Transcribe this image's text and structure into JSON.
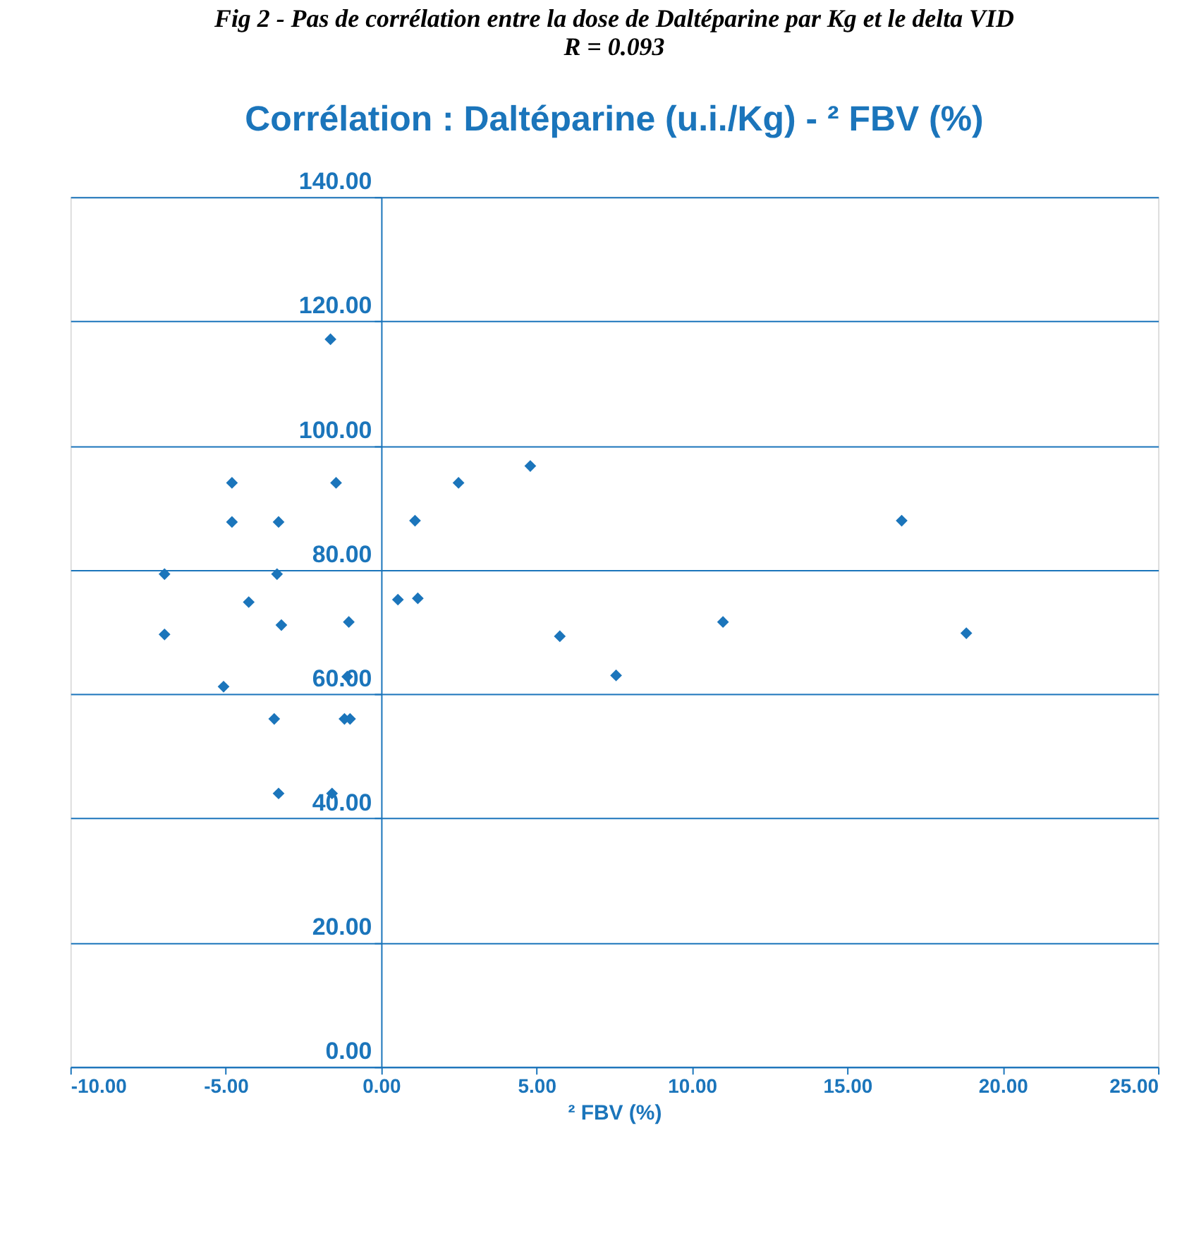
{
  "chart_data": {
    "type": "scatter",
    "title": "Corrélation : Daltéparine (u.i./Kg) - ² FBV (%)",
    "annotations": [
      "Fig 2 - Pas de corrélation entre la dose de Daltéparine par Kg et le delta VID",
      "R = 0.093"
    ],
    "xlabel": "² FBV (%)",
    "x": [
      -6.97,
      -6.97,
      -4.8,
      -4.8,
      -4.26,
      -5.07,
      -3.3,
      -3.35,
      -3.21,
      -3.44,
      -3.3,
      -1.63,
      -1.45,
      -1.04,
      -1.09,
      -1.18,
      -1.0,
      -1.58,
      0.54,
      1.09,
      1.18,
      2.49,
      4.8,
      5.75,
      7.56,
      11.0,
      16.75,
      18.83
    ],
    "values": [
      79.3,
      69.6,
      94.0,
      87.7,
      74.8,
      61.2,
      87.7,
      79.3,
      71.1,
      56.0,
      44.0,
      117.1,
      94.0,
      71.6,
      62.8,
      56.0,
      56.0,
      44.0,
      75.2,
      87.9,
      75.4,
      94.0,
      96.7,
      69.3,
      63.0,
      71.6,
      87.9,
      69.8
    ],
    "color": "#1b75bb",
    "marker": "diamond",
    "grid": "y",
    "xlim": [
      -10,
      25
    ],
    "xticks": [
      {
        "value": -10,
        "label": "-10.00"
      },
      {
        "value": -5,
        "label": "-5.00"
      },
      {
        "value": 0,
        "label": "0.00"
      },
      {
        "value": 5,
        "label": "5.00"
      },
      {
        "value": 10,
        "label": "10.00"
      },
      {
        "value": 15,
        "label": "15.00"
      },
      {
        "value": 20,
        "label": "20.00"
      },
      {
        "value": 25,
        "label": "25.00"
      }
    ],
    "ylim": [
      0,
      140
    ],
    "yticks": [
      {
        "value": 0,
        "label": "0.00"
      },
      {
        "value": 20,
        "label": "20.00"
      },
      {
        "value": 40,
        "label": "40.00"
      },
      {
        "value": 60,
        "label": "60.00"
      },
      {
        "value": 80,
        "label": "80.00"
      },
      {
        "value": 100,
        "label": "100.00"
      },
      {
        "value": 120,
        "label": "120.00"
      },
      {
        "value": 140,
        "label": "140.00"
      }
    ]
  }
}
